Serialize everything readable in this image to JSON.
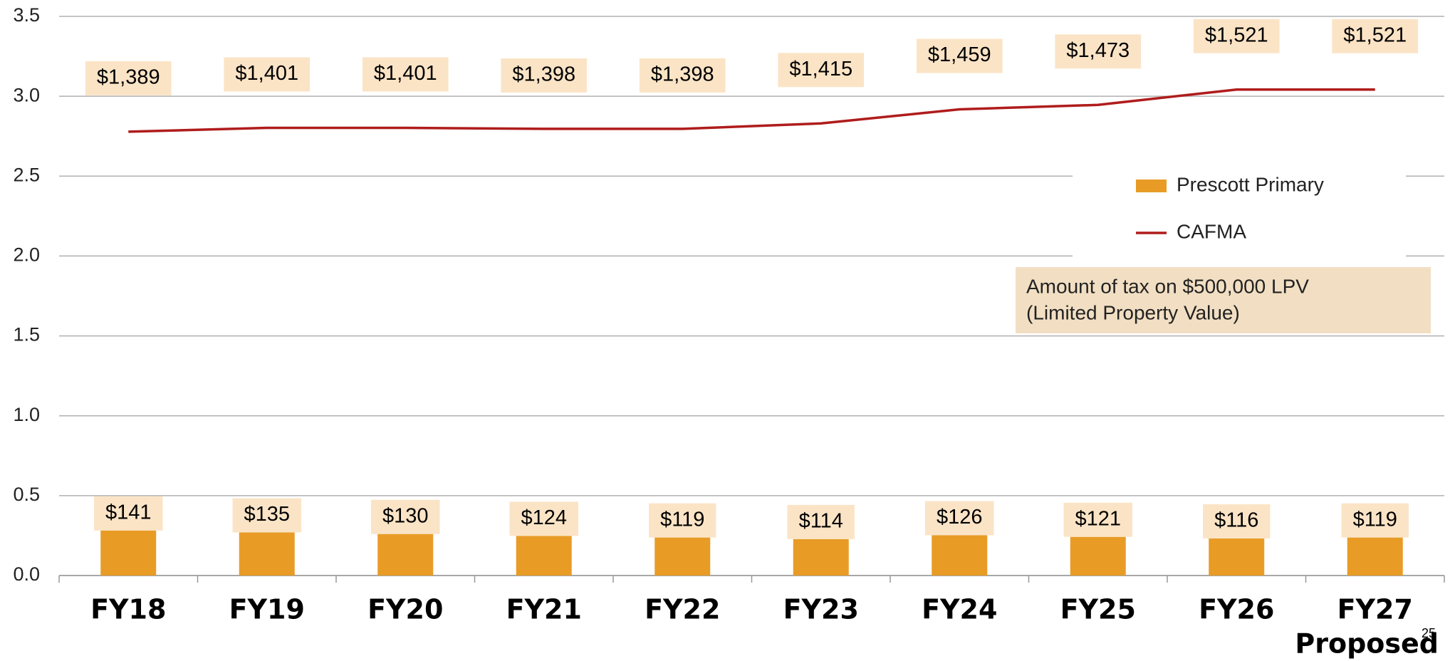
{
  "chart_data": {
    "type": "bar_line",
    "categories": [
      "FY18",
      "FY19",
      "FY20",
      "FY21",
      "FY22",
      "FY23",
      "FY24",
      "FY25",
      "FY26",
      "FY27"
    ],
    "category_note": "Proposed",
    "series": [
      {
        "name": "Prescott Primary",
        "type": "bar",
        "color": "#e89c26",
        "values": [
          0.282,
          0.27,
          0.26,
          0.248,
          0.238,
          0.228,
          0.252,
          0.242,
          0.232,
          0.238
        ],
        "value_labels": [
          "$141",
          "$135",
          "$130",
          "$124",
          "$119",
          "$114",
          "$126",
          "$121",
          "$116",
          "$119"
        ]
      },
      {
        "name": "CAFMA",
        "type": "line",
        "color": "#b01c1c",
        "values": [
          2.778,
          2.802,
          2.802,
          2.796,
          2.796,
          2.83,
          2.918,
          2.946,
          3.042,
          3.042
        ],
        "value_labels": [
          "$1,389",
          "$1,401",
          "$1,401",
          "$1,398",
          "$1,398",
          "$1,415",
          "$1,459",
          "$1,473",
          "$1,521",
          "$1,521"
        ]
      }
    ],
    "ylim": [
      0,
      3.5
    ],
    "yticks": [
      {
        "value": 0,
        "label": "0.0"
      },
      0.5,
      {
        "value": 1,
        "label": "1.0"
      },
      1.5,
      {
        "value": 2,
        "label": "2.0"
      },
      2.5,
      {
        "value": 3,
        "label": "3.0"
      },
      3.5
    ],
    "grid": true,
    "note": [
      "Amount of tax on $500,000 LPV",
      "(Limited Property Value)"
    ],
    "page_number": "25"
  }
}
